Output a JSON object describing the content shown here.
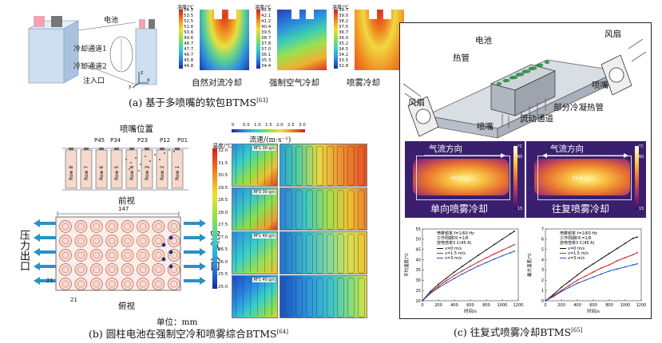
{
  "panel_a": {
    "caption": "(a) 基于多喷嘴的软包BTMS",
    "ref": "[63]",
    "labels": {
      "battery": "电池",
      "channel1": "冷却通道1",
      "channel2": "冷却通道2",
      "inlet": "注入口"
    },
    "axes": {
      "x": "x",
      "y": "y",
      "z": "z"
    },
    "maps": [
      {
        "title": "自然对流冷却",
        "unit": "温度/℃",
        "ticks": [
          "54.5",
          "53.5",
          "52.5",
          "51.6",
          "50.6",
          "49.6",
          "48.7",
          "47.7",
          "46.7",
          "45.8",
          "44.8"
        ]
      },
      {
        "title": "强制空气冷却",
        "unit": "温度/℃",
        "ticks": [
          "42.9",
          "42.1",
          "41.2",
          "40.4",
          "39.5",
          "38.7",
          "37.8",
          "37.0",
          "36.1",
          "35.3",
          "34.4"
        ]
      },
      {
        "title": "喷雾冷却",
        "unit": "温度/℃",
        "ticks": [
          "39.7",
          "39.0",
          "38.2",
          "37.5",
          "36.7",
          "36.0",
          "35.2",
          "34.5",
          "34.2",
          "33.5",
          "32.8"
        ]
      }
    ]
  },
  "panel_b": {
    "caption": "(b) 圆柱电池在强制空冷和喷雾综合BTMS",
    "ref": "[64]",
    "nozzle_title": "喷嘴位置",
    "nozzles": [
      "P45",
      "P34",
      "P23",
      "P12",
      "P01"
    ],
    "rows": [
      "Row 8",
      "Row 7",
      "Row 6",
      "Row 5",
      "Row 4",
      "Row 3",
      "Row 2",
      "Row 1"
    ],
    "front_view": "前视",
    "top_view": "俯视",
    "dim_width": "147",
    "dim_small": "21",
    "outlet": "压力出口",
    "inlet": "空气入口",
    "unit_text": "单位：mm",
    "flow_label": "流速/(m·s⁻¹)",
    "flow_ticks": [
      "0",
      "0.5",
      "1.0",
      "1.5",
      "2.0",
      "2.5",
      "3.0"
    ],
    "temp_label": "温度/℃",
    "temp_ticks": [
      "32.0",
      "31.5",
      "30.5",
      "29.5",
      "28.5",
      "28.0",
      "27.5",
      "27.0",
      "26.5",
      "26.0",
      "25.5",
      "25.0"
    ],
    "sims": [
      "RF1 30 g/s",
      "RF3 30 g/s",
      "RF1 40 g/s",
      "RF1 40 g/s"
    ]
  },
  "panel_c": {
    "caption": "(c) 往复式喷雾冷却BTMS",
    "ref": "[65]",
    "labels": {
      "fan_left": "风扇",
      "fan_right": "风扇",
      "battery": "电池",
      "heatpipe": "热管",
      "nozzle_right": "喷嘴",
      "nozzle_bottom": "喷嘴",
      "channel": "流动通道",
      "partial": "部分冷凝热管"
    },
    "ir": [
      {
        "flow": "气流方向",
        "title": "单向喷雾冷却",
        "spot": "60.3"
      },
      {
        "flow": "气流方向",
        "title": "往复喷雾冷却",
        "spot": "54.6"
      }
    ],
    "ir_scale": [
      "°C",
      "60",
      "",
      "",
      "",
      "",
      "15"
    ],
    "chart_left_info": [
      "喷雾频率 f=1/60 Hz",
      "工作周期DC=1/6",
      "放电倍率3 C(45 A)"
    ],
    "chart_right_info": [
      "喷雾频率 f=1/60 Hz",
      "工作周期DC=1/6",
      "放电倍率3 C(45 A)"
    ]
  },
  "chart_data": [
    {
      "type": "line",
      "xlabel": "时间/s",
      "ylabel": "平均温度/℃",
      "xlim": [
        0,
        1200
      ],
      "ylim": [
        20,
        55
      ],
      "xticks": [
        "0",
        "200",
        "400",
        "600",
        "800",
        "1000",
        "1200"
      ],
      "yticks": [
        "20",
        "25",
        "30",
        "35",
        "40",
        "45",
        "50",
        "55"
      ],
      "series": [
        {
          "name": "v=0 m/s",
          "color": "#111111",
          "x": [
            0,
            100,
            200,
            300,
            400,
            500,
            600,
            700,
            800,
            900,
            1000,
            1100,
            1150
          ],
          "y": [
            20,
            24.5,
            28,
            31,
            34,
            36.8,
            39.5,
            42.2,
            44.8,
            47.4,
            50,
            52.6,
            53.8
          ]
        },
        {
          "name": "v=1.5 m/s",
          "color": "#d42020",
          "x": [
            0,
            100,
            200,
            300,
            400,
            500,
            600,
            700,
            800,
            900,
            1000,
            1100,
            1150
          ],
          "y": [
            20,
            24,
            27,
            29.8,
            32.3,
            34.6,
            36.8,
            38.9,
            40.9,
            42.8,
            44.6,
            46.4,
            47.3
          ]
        },
        {
          "name": "v=3 m/s",
          "color": "#1f4fbf",
          "x": [
            0,
            100,
            200,
            300,
            400,
            500,
            600,
            700,
            800,
            900,
            1000,
            1100,
            1150
          ],
          "y": [
            20,
            23.6,
            26.3,
            28.7,
            30.9,
            33,
            35,
            36.9,
            38.6,
            40.3,
            41.9,
            43.4,
            44.1
          ]
        }
      ]
    },
    {
      "type": "line",
      "xlabel": "时间/s",
      "ylabel": "最大温差/℃",
      "xlim": [
        0,
        1200
      ],
      "ylim": [
        0,
        7
      ],
      "xticks": [
        "0",
        "200",
        "400",
        "600",
        "800",
        "1000",
        "1200"
      ],
      "yticks": [
        "0",
        "1",
        "2",
        "3",
        "4",
        "5",
        "6",
        "7"
      ],
      "series": [
        {
          "name": "v=0 m/s",
          "color": "#111111",
          "x": [
            0,
            100,
            200,
            300,
            400,
            500,
            600,
            700,
            800,
            900,
            1000,
            1100,
            1150
          ],
          "y": [
            0,
            0.6,
            1.3,
            1.9,
            2.5,
            3.1,
            3.6,
            4.1,
            4.6,
            5.1,
            5.6,
            6.1,
            6.2
          ]
        },
        {
          "name": "v=1.5 m/s",
          "color": "#d42020",
          "x": [
            0,
            100,
            200,
            300,
            400,
            500,
            600,
            700,
            800,
            900,
            1000,
            1100,
            1150
          ],
          "y": [
            0,
            0.5,
            1.0,
            1.5,
            2.0,
            2.4,
            2.8,
            3.2,
            3.5,
            3.9,
            4.2,
            4.5,
            4.7
          ]
        },
        {
          "name": "v=3 m/s",
          "color": "#1f4fbf",
          "x": [
            0,
            100,
            200,
            300,
            400,
            500,
            600,
            700,
            800,
            900,
            1000,
            1100,
            1150
          ],
          "y": [
            0,
            0.4,
            0.9,
            1.3,
            1.7,
            2.0,
            2.3,
            2.6,
            2.9,
            3.1,
            3.3,
            3.5,
            3.6
          ]
        }
      ]
    }
  ]
}
